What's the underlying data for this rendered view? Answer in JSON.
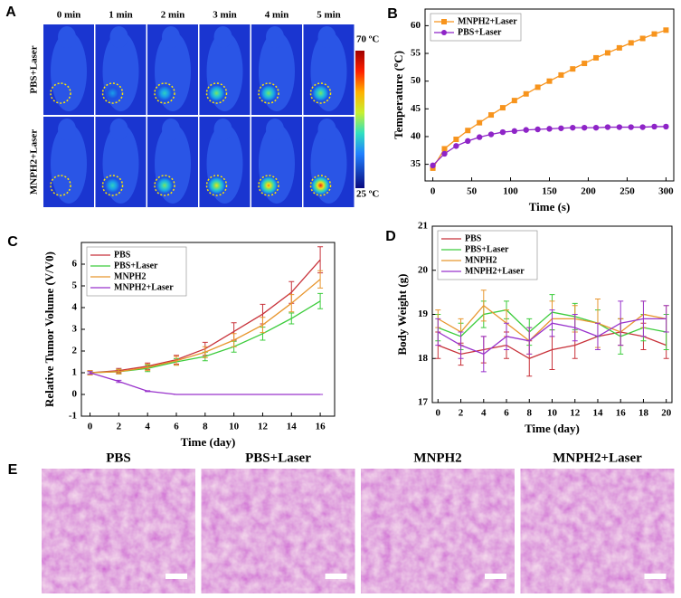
{
  "panel_labels": [
    "A",
    "B",
    "C",
    "D",
    "E"
  ],
  "panel_a": {
    "columns": [
      "0 min",
      "1 min",
      "2 min",
      "3 min",
      "4 min",
      "5 min"
    ],
    "rows": [
      "PBS+Laser",
      "MNPH2+Laser"
    ],
    "colorbar_max": "70 ºC",
    "colorbar_min": "25 ºC"
  },
  "panel_e": {
    "titles": [
      "PBS",
      "PBS+Laser",
      "MNPH2",
      "MNPH2+Laser"
    ]
  },
  "chart_data": [
    {
      "type": "line",
      "xlabel": "Time (s)",
      "ylabel": "Temperature (ºC)",
      "legend": "upper left",
      "x": [
        0,
        15,
        30,
        45,
        60,
        75,
        90,
        105,
        120,
        135,
        150,
        165,
        180,
        195,
        210,
        225,
        240,
        255,
        270,
        285,
        300
      ],
      "xlim": [
        -10,
        310
      ],
      "xticks": [
        0,
        50,
        100,
        150,
        200,
        250,
        300
      ],
      "ylim": [
        32,
        63
      ],
      "yticks": [
        35,
        40,
        45,
        50,
        55,
        60
      ],
      "series": [
        {
          "name": "MNPH2+Laser",
          "color": "#f7941d",
          "marker": "square",
          "values": [
            34.3,
            37.8,
            39.5,
            41.1,
            42.5,
            43.9,
            45.2,
            46.5,
            47.7,
            48.9,
            50.0,
            51.1,
            52.2,
            53.2,
            54.2,
            55.1,
            56.0,
            56.9,
            57.7,
            58.5,
            59.2
          ]
        },
        {
          "name": "PBS+Laser",
          "color": "#8e24c7",
          "marker": "circle",
          "values": [
            34.8,
            36.9,
            38.3,
            39.2,
            39.9,
            40.4,
            40.8,
            41.0,
            41.2,
            41.3,
            41.4,
            41.5,
            41.6,
            41.6,
            41.6,
            41.7,
            41.7,
            41.7,
            41.7,
            41.8,
            41.8
          ]
        }
      ]
    },
    {
      "type": "line",
      "xlabel": "Time (day)",
      "ylabel": "Relative Tumor Volume (V/V0)",
      "legend": "upper left",
      "x": [
        0,
        2,
        4,
        6,
        8,
        10,
        12,
        14,
        16
      ],
      "xlim": [
        -0.6,
        17
      ],
      "xticks": [
        0,
        2,
        4,
        6,
        8,
        10,
        12,
        14,
        16
      ],
      "ylim": [
        -1,
        7
      ],
      "yticks": [
        -1,
        0,
        1,
        2,
        3,
        4,
        5,
        6
      ],
      "series": [
        {
          "name": "PBS",
          "color": "#c8323a",
          "values": [
            1,
            1.1,
            1.3,
            1.6,
            2.1,
            2.9,
            3.7,
            4.7,
            6.2
          ],
          "errors": [
            0.1,
            0.1,
            0.15,
            0.2,
            0.3,
            0.4,
            0.45,
            0.5,
            0.6
          ]
        },
        {
          "name": "PBS+Laser",
          "color": "#3ccc3c",
          "values": [
            1,
            1.05,
            1.2,
            1.5,
            1.75,
            2.2,
            2.8,
            3.5,
            4.3
          ],
          "errors": [
            0.05,
            0.1,
            0.15,
            0.15,
            0.2,
            0.25,
            0.3,
            0.25,
            0.35
          ]
        },
        {
          "name": "MNPH2",
          "color": "#e8962e",
          "values": [
            1,
            1.05,
            1.25,
            1.55,
            1.95,
            2.5,
            3.2,
            4.2,
            5.3
          ],
          "errors": [
            0.1,
            0.1,
            0.15,
            0.2,
            0.25,
            0.3,
            0.35,
            0.4,
            0.4
          ]
        },
        {
          "name": "MNPH2+Laser",
          "color": "#9933cc",
          "values": [
            1,
            0.6,
            0.15,
            0,
            0,
            0,
            0,
            0,
            0
          ],
          "errors": [
            0.05,
            0.05,
            0.02,
            0,
            0,
            0,
            0,
            0,
            0
          ]
        }
      ]
    },
    {
      "type": "line",
      "xlabel": "Time (day)",
      "ylabel": "Body Weight (g)",
      "legend": "upper left",
      "x": [
        0,
        2,
        4,
        6,
        8,
        10,
        12,
        14,
        16,
        18,
        20
      ],
      "xlim": [
        -0.5,
        20.5
      ],
      "xticks": [
        0,
        2,
        4,
        6,
        8,
        10,
        12,
        14,
        16,
        18,
        20
      ],
      "ylim": [
        17,
        21
      ],
      "yticks": [
        17,
        18,
        19,
        20,
        21
      ],
      "series": [
        {
          "name": "PBS",
          "color": "#c8323a",
          "values": [
            18.3,
            18.1,
            18.2,
            18.3,
            18.0,
            18.2,
            18.3,
            18.5,
            18.6,
            18.5,
            18.3
          ],
          "errors": [
            0.3,
            0.25,
            0.3,
            0.3,
            0.4,
            0.45,
            0.3,
            0.3,
            0.3,
            0.3,
            0.3
          ]
        },
        {
          "name": "PBS+Laser",
          "color": "#3ccc3c",
          "values": [
            18.7,
            18.5,
            19.0,
            19.1,
            18.6,
            19.05,
            18.95,
            18.8,
            18.5,
            18.7,
            18.6
          ],
          "errors": [
            0.3,
            0.3,
            0.3,
            0.2,
            0.3,
            0.4,
            0.3,
            0.3,
            0.4,
            0.3,
            0.4
          ]
        },
        {
          "name": "MNPH2",
          "color": "#e8962e",
          "values": [
            18.9,
            18.6,
            19.2,
            18.8,
            18.4,
            18.9,
            18.9,
            18.8,
            18.6,
            19.0,
            18.9
          ],
          "errors": [
            0.2,
            0.3,
            0.35,
            0.3,
            0.3,
            0.4,
            0.3,
            0.55,
            0.3,
            0.3,
            0.3
          ]
        },
        {
          "name": "MNPH2+Laser",
          "color": "#9933cc",
          "values": [
            18.6,
            18.3,
            18.1,
            18.5,
            18.4,
            18.8,
            18.7,
            18.5,
            18.8,
            18.9,
            18.9
          ],
          "errors": [
            0.3,
            0.3,
            0.4,
            0.3,
            0.3,
            0.3,
            0.3,
            0.3,
            0.5,
            0.4,
            0.3
          ]
        }
      ]
    }
  ]
}
